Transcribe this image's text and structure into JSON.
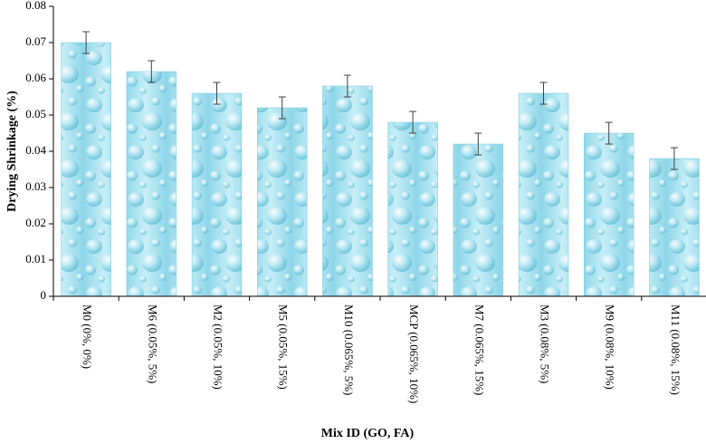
{
  "chart_data": {
    "type": "bar",
    "title": "",
    "xlabel": "Mix ID (GO, FA)",
    "ylabel": "Drying Shrinkage (%)",
    "ylim": [
      0,
      0.08
    ],
    "yticks": [
      "0",
      "0.01",
      "0.02",
      "0.03",
      "0.04",
      "0.05",
      "0.06",
      "0.07",
      "0.08"
    ],
    "ytick_values": [
      0,
      0.01,
      0.02,
      0.03,
      0.04,
      0.05,
      0.06,
      0.07,
      0.08
    ],
    "categories": [
      "M0 (0%, 0%)",
      "M6 (0.05%, 5%)",
      "M2 (0.05%, 10%)",
      "M5 (0.05%, 15%)",
      "M10 (0.065%, 5%)",
      "MCP (0.065%, 10%)",
      "M7 (0.065%, 15%)",
      "M3 (0.08%, 5%)",
      "M9 (0.08%, 10%)",
      "M11 (0.08%, 15%)"
    ],
    "values": [
      0.07,
      0.062,
      0.056,
      0.052,
      0.058,
      0.048,
      0.042,
      0.056,
      0.045,
      0.038
    ],
    "errors": [
      0.003,
      0.003,
      0.003,
      0.003,
      0.003,
      0.003,
      0.003,
      0.003,
      0.003,
      0.003
    ],
    "grid": false,
    "legend": "none",
    "bar_fill": "water-droplet texture",
    "colors": {
      "bar_light": "#d9f3f9",
      "bar_base": "#9edbe9",
      "bar_dark": "#5fc0d8",
      "axis": "#000000",
      "error_bar": "#404040"
    }
  }
}
